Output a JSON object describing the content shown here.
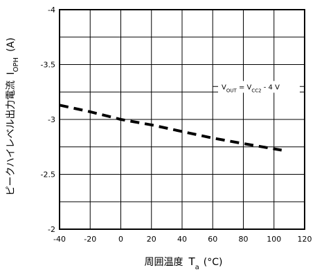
{
  "chart_data": {
    "type": "line",
    "xlabel": "周囲温度",
    "xlabel_symbol": "T",
    "xlabel_sub": "a",
    "xlabel_unit": "(°C)",
    "ylabel": "ピークハイレベル出力電流",
    "ylabel_symbol": "I",
    "ylabel_sub": "OPH",
    "ylabel_unit": "(A)",
    "xlim": [
      -40,
      120
    ],
    "ylim": [
      -4,
      -2
    ],
    "x_ticks": [
      -40,
      -20,
      0,
      20,
      40,
      60,
      80,
      100,
      120
    ],
    "x_tick_labels": [
      "-40",
      "-20",
      "0",
      "20",
      "40",
      "60",
      "80",
      "100",
      "120"
    ],
    "y_ticks": [
      -4,
      -3.5,
      -3,
      -2.5,
      -2
    ],
    "y_tick_labels": [
      "-4",
      "-3.5",
      "-3",
      "-2.5",
      "-2"
    ],
    "y_minor_grid": [
      -3.75,
      -3.25,
      -2.75,
      -2.25
    ],
    "grid": true,
    "line_style": "dashed",
    "line_color": "#000000",
    "series": [
      {
        "x": [
          -40,
          -20,
          0,
          20,
          40,
          60,
          80,
          105
        ],
        "y": [
          -3.13,
          -3.07,
          -3.0,
          -2.95,
          -2.89,
          -2.83,
          -2.78,
          -2.72
        ]
      }
    ],
    "annotation": {
      "parts": [
        {
          "text": "V",
          "sub": "OUT"
        },
        {
          "text": " = V",
          "sub": "CC2"
        },
        {
          "text": " - 4 V",
          "sub": ""
        }
      ]
    }
  }
}
